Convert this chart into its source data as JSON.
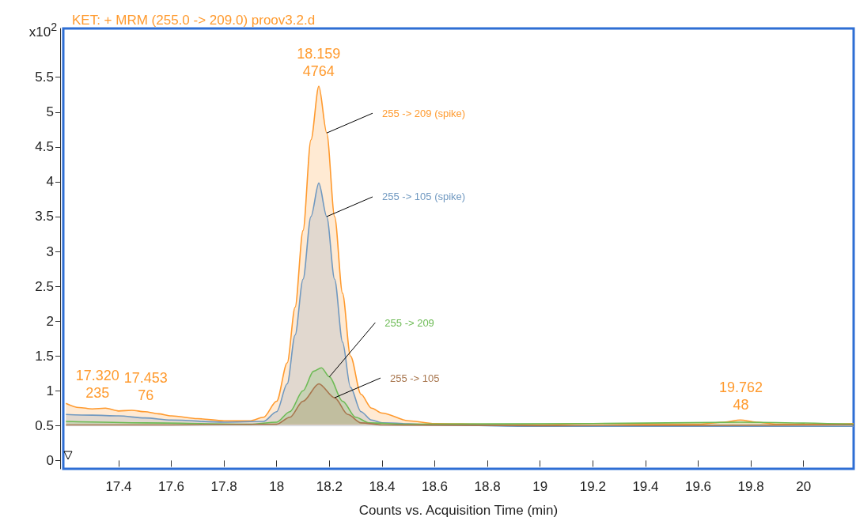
{
  "chart_data": {
    "type": "area",
    "title": "KET: + MRM (255.0 -> 209.0) proov3.2.d",
    "xlabel": "Counts vs. Acquisition Time (min)",
    "ylabel": "x10$^{2}$",
    "xlim": [
      17.19,
      20.19
    ],
    "xticks": [
      17.4,
      17.6,
      17.8,
      18,
      18.2,
      18.4,
      18.6,
      18.8,
      19,
      19.2,
      19.4,
      19.6,
      19.8,
      20
    ],
    "ylim": [
      -0.12,
      6.2
    ],
    "yticks": [
      0,
      0.5,
      1,
      1.5,
      2,
      2.5,
      3,
      3.5,
      4,
      4.5,
      5,
      5.5
    ],
    "grid": false,
    "series": [
      {
        "name": "255 -> 209 (spike)",
        "color": "#ff9a2e",
        "x": [
          17.2,
          17.25,
          17.3,
          17.35,
          17.4,
          17.45,
          17.5,
          17.55,
          17.6,
          17.7,
          17.8,
          17.9,
          17.95,
          18.0,
          18.04,
          18.07,
          18.1,
          18.13,
          18.16,
          18.19,
          18.22,
          18.25,
          18.28,
          18.32,
          18.36,
          18.4,
          18.5,
          18.6,
          18.8,
          19.0,
          19.2,
          19.4,
          19.6,
          19.7,
          19.76,
          19.82,
          19.9,
          20.0,
          20.19
        ],
        "values": [
          0.82,
          0.76,
          0.74,
          0.75,
          0.71,
          0.72,
          0.7,
          0.67,
          0.64,
          0.6,
          0.57,
          0.57,
          0.62,
          0.85,
          1.4,
          2.2,
          3.3,
          4.6,
          5.37,
          4.7,
          3.5,
          2.4,
          1.5,
          0.95,
          0.75,
          0.68,
          0.57,
          0.53,
          0.52,
          0.51,
          0.53,
          0.52,
          0.52,
          0.55,
          0.58,
          0.55,
          0.52,
          0.52,
          0.53
        ]
      },
      {
        "name": "255 -> 105 (spike)",
        "color": "#6f98c0",
        "x": [
          17.2,
          17.3,
          17.4,
          17.5,
          17.6,
          17.8,
          17.95,
          18.0,
          18.04,
          18.07,
          18.1,
          18.13,
          18.16,
          18.19,
          18.22,
          18.25,
          18.28,
          18.32,
          18.36,
          18.4,
          18.6,
          19.0,
          19.5,
          20.19
        ],
        "values": [
          0.66,
          0.65,
          0.64,
          0.61,
          0.58,
          0.55,
          0.56,
          0.7,
          1.1,
          1.8,
          2.6,
          3.5,
          3.98,
          3.5,
          2.6,
          1.7,
          1.05,
          0.7,
          0.58,
          0.54,
          0.51,
          0.49,
          0.49,
          0.49
        ]
      },
      {
        "name": "255 -> 209",
        "color": "#6dbb55",
        "x": [
          17.2,
          17.5,
          17.9,
          18.0,
          18.05,
          18.1,
          18.14,
          18.17,
          18.2,
          18.25,
          18.3,
          18.35,
          18.5,
          19.2,
          19.76,
          20.19
        ],
        "values": [
          0.56,
          0.54,
          0.52,
          0.55,
          0.7,
          1.0,
          1.28,
          1.33,
          1.2,
          0.85,
          0.62,
          0.54,
          0.52,
          0.53,
          0.55,
          0.52
        ]
      },
      {
        "name": "255 -> 105",
        "color": "#a8764e",
        "x": [
          17.2,
          17.6,
          18.0,
          18.05,
          18.1,
          18.16,
          18.22,
          18.27,
          18.32,
          18.4,
          19.0,
          20.19
        ],
        "values": [
          0.51,
          0.51,
          0.52,
          0.62,
          0.85,
          1.1,
          0.9,
          0.66,
          0.54,
          0.51,
          0.5,
          0.51
        ]
      }
    ],
    "annotations": [
      {
        "text": "17.320\n235",
        "x": 17.32,
        "y": 0.75
      },
      {
        "text": "17.453\n76",
        "x": 17.453,
        "y": 0.72
      },
      {
        "text": "18.159\n4764",
        "x": 18.159,
        "y": 5.37
      },
      {
        "text": "19.762\n48",
        "x": 19.762,
        "y": 0.58
      }
    ]
  }
}
